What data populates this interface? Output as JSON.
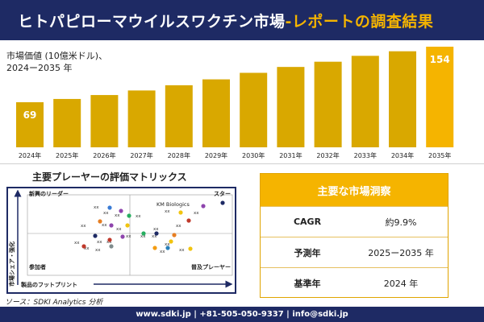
{
  "header": {
    "title_main": "ヒトパピローマウイルスワクチン市場",
    "title_accent": "-レポートの調査結果"
  },
  "chart_data": {
    "type": "bar",
    "title": "市場価値 (10億米ドル)、\n2024ー2035 年",
    "categories": [
      "2024年",
      "2025年",
      "2026年",
      "2027年",
      "2028年",
      "2029年",
      "2030年",
      "2031年",
      "2032年",
      "2033年",
      "2034年",
      "2035年"
    ],
    "values": [
      69,
      74,
      80,
      87,
      95,
      104,
      114,
      123,
      131,
      140,
      147,
      154
    ],
    "data_labels": {
      "first": "69",
      "last": "154"
    },
    "ylim": [
      0,
      154
    ],
    "bar_color": "#d9a800",
    "bar_color_last": "#f5b400",
    "label_color": "#ffffff"
  },
  "matrix": {
    "title": "主要プレーヤーの評価マトリックス",
    "quadrants": {
      "top_left": "新興のリーダー",
      "top_right": "スター",
      "bottom_left": "参加者",
      "bottom_right": "普及プレーヤー"
    },
    "axis_x": "製品のフットプリント",
    "axis_y": "市場シェア・強化",
    "highlight": "KM Biologics",
    "marker": "xx"
  },
  "table": {
    "title": "主要な市場洞察",
    "rows": [
      {
        "key": "CAGR",
        "value": "約9.9%"
      },
      {
        "key": "予測年",
        "value": "2025ー2035 年"
      },
      {
        "key": "基準年",
        "value": "2024 年"
      }
    ]
  },
  "source": "ソース：SDKI Analytics 分析",
  "footer": "www.sdki.jp | +81-505-050-9337 | info@sdki.jp",
  "colors": {
    "navy": "#1e2a64",
    "gold": "#f5b400"
  }
}
